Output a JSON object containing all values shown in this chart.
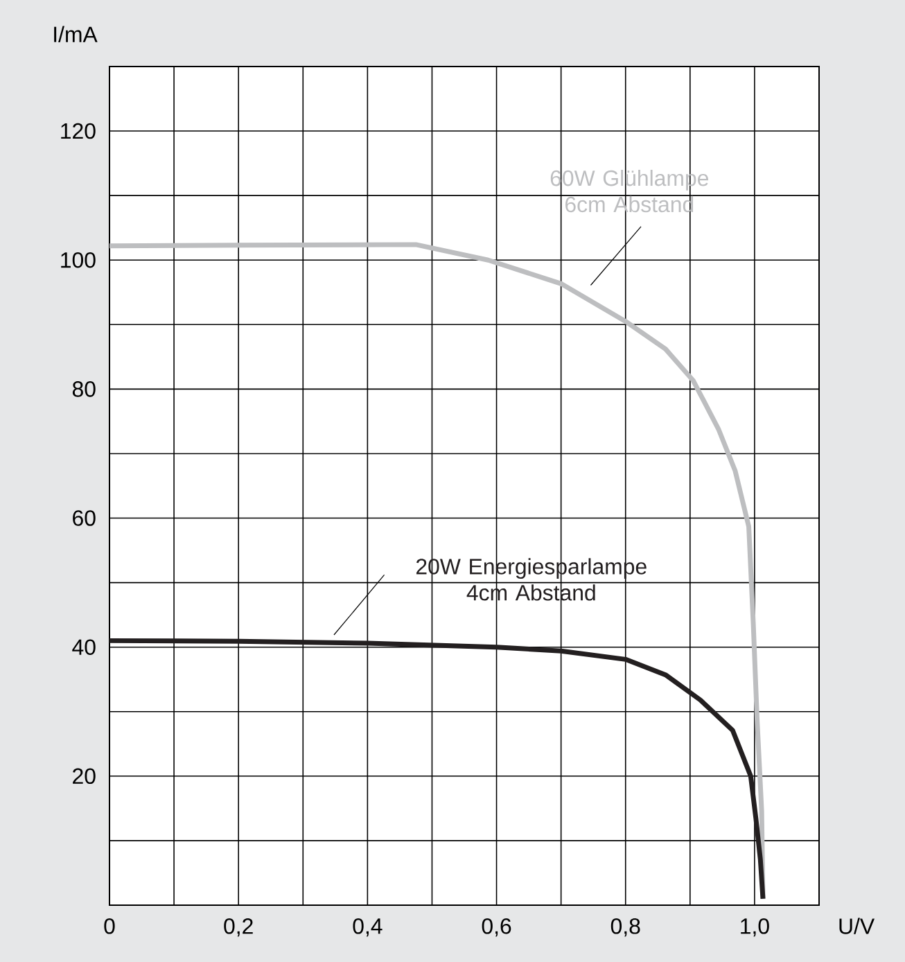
{
  "chart_data": {
    "type": "line",
    "xlabel": "U/V",
    "ylabel": "I/mA",
    "xlim": [
      0,
      1.1
    ],
    "ylim": [
      0,
      130
    ],
    "xticks": [
      {
        "value": 0,
        "label": "0"
      },
      {
        "value": 0.1,
        "label": null
      },
      {
        "value": 0.2,
        "label": "0,2"
      },
      {
        "value": 0.3,
        "label": null
      },
      {
        "value": 0.4,
        "label": "0,4"
      },
      {
        "value": 0.5,
        "label": null
      },
      {
        "value": 0.6,
        "label": "0,6"
      },
      {
        "value": 0.7,
        "label": null
      },
      {
        "value": 0.8,
        "label": "0,8"
      },
      {
        "value": 0.9,
        "label": null
      },
      {
        "value": 1.0,
        "label": "1,0"
      },
      {
        "value": 1.1,
        "label": null
      }
    ],
    "yticks": [
      {
        "value": 0,
        "label": null
      },
      {
        "value": 10,
        "label": null
      },
      20,
      {
        "value": 30,
        "label": null
      },
      40,
      {
        "value": 50,
        "label": null
      },
      60,
      {
        "value": 70,
        "label": null
      },
      80,
      {
        "value": 90,
        "label": null
      },
      100,
      {
        "value": 110,
        "label": null
      },
      120,
      {
        "value": 130,
        "label": null
      }
    ],
    "grid": true,
    "marker": "none",
    "line_style": "solid",
    "series": [
      {
        "color": "#bdbec0",
        "x": [
          0,
          0.2,
          0.475,
          0.587,
          0.701,
          0.8,
          0.862,
          0.905,
          0.944,
          0.97,
          0.991,
          0.998,
          1.004,
          1.011,
          1.013
        ],
        "values": [
          102.2,
          102.3,
          102.4,
          100,
          96.3,
          90.5,
          86.2,
          81.3,
          73.8,
          67.3,
          58.7,
          43.7,
          28.6,
          14.6,
          1
        ]
      },
      {
        "color": "#231f20",
        "x": [
          0,
          0.2,
          0.4,
          0.6,
          0.7,
          0.8,
          0.862,
          0.916,
          0.966,
          0.994,
          1.002,
          1.009,
          1.013
        ],
        "values": [
          41,
          40.9,
          40.6,
          40,
          39.4,
          38.1,
          35.7,
          31.8,
          27.1,
          20,
          13.5,
          7.1,
          1
        ]
      }
    ],
    "annotations": [
      "60W Glühlampe 6cm Abstand",
      "20W Energiesparlampe 4cm Abstand"
    ]
  }
}
